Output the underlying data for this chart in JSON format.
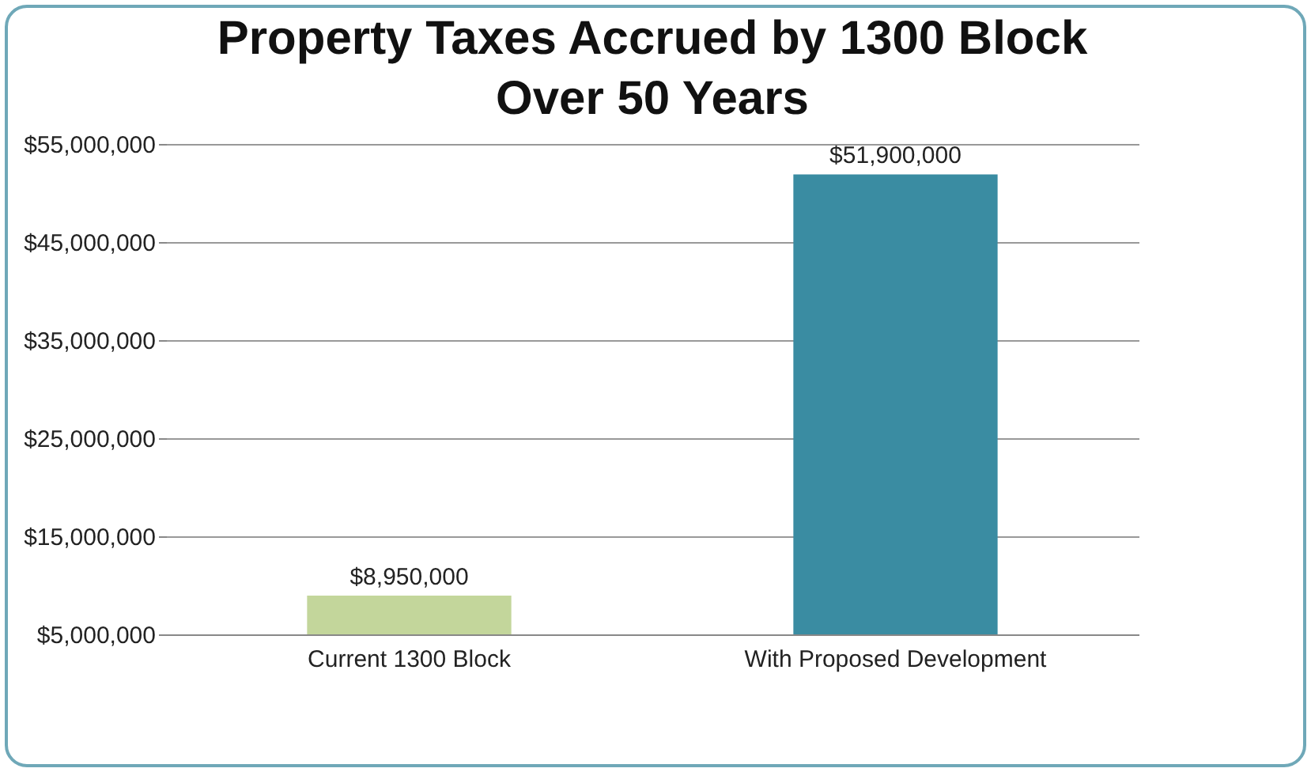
{
  "chart_data": {
    "type": "bar",
    "title": "Property Taxes Accrued by 1300 Block\nOver 50 Years",
    "categories": [
      "Current 1300 Block",
      "With Proposed Development"
    ],
    "values": [
      8950000,
      51900000
    ],
    "colors": [
      "#c3d69b",
      "#3a8ca2"
    ],
    "value_labels": [
      "$8,950,000",
      "$51,900,000"
    ],
    "ylim": [
      5000000,
      55000000
    ],
    "yticks": [
      {
        "value": 5000000,
        "label": "$5,000,000"
      },
      {
        "value": 15000000,
        "label": "$15,000,000"
      },
      {
        "value": 25000000,
        "label": "$25,000,000"
      },
      {
        "value": 35000000,
        "label": "$35,000,000"
      },
      {
        "value": 45000000,
        "label": "$45,000,000"
      },
      {
        "value": 55000000,
        "label": "$55,000,000"
      }
    ],
    "grid": "y"
  }
}
